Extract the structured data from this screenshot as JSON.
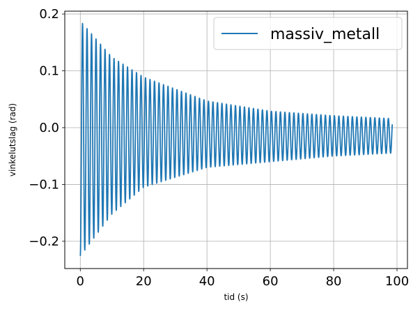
{
  "chart_data": {
    "type": "line",
    "title": "",
    "xlabel": "tid (s)",
    "ylabel": "vinkelutslag (rad)",
    "xlim": [
      -4.9,
      103.3
    ],
    "ylim": [
      -0.248,
      0.205
    ],
    "xticks": [
      0,
      20,
      40,
      60,
      80,
      100
    ],
    "yticks": [
      -0.2,
      -0.1,
      0.0,
      0.1,
      0.2
    ],
    "xtick_labels": [
      "0",
      "20",
      "40",
      "60",
      "80",
      "100"
    ],
    "ytick_labels": [
      "−0.2",
      "−0.1",
      "0.0",
      "0.1",
      "0.2"
    ],
    "grid": true,
    "legend_position": "top-right",
    "color": "#1f77b4",
    "series": [
      {
        "name": "massiv_metall",
        "description": "damped oscillation",
        "x_start": 0.0,
        "x_end": 98.5,
        "period": 1.42,
        "upper_envelope": {
          "x": [
            0.6,
            10,
            20,
            40,
            60,
            80,
            98
          ],
          "y": [
            0.184,
            0.124,
            0.089,
            0.047,
            0.029,
            0.021,
            0.016
          ]
        },
        "lower_envelope": {
          "x": [
            0.0,
            10,
            20,
            40,
            60,
            80,
            98
          ],
          "y": [
            -0.226,
            -0.152,
            -0.105,
            -0.07,
            -0.06,
            -0.05,
            -0.045
          ]
        }
      }
    ]
  }
}
